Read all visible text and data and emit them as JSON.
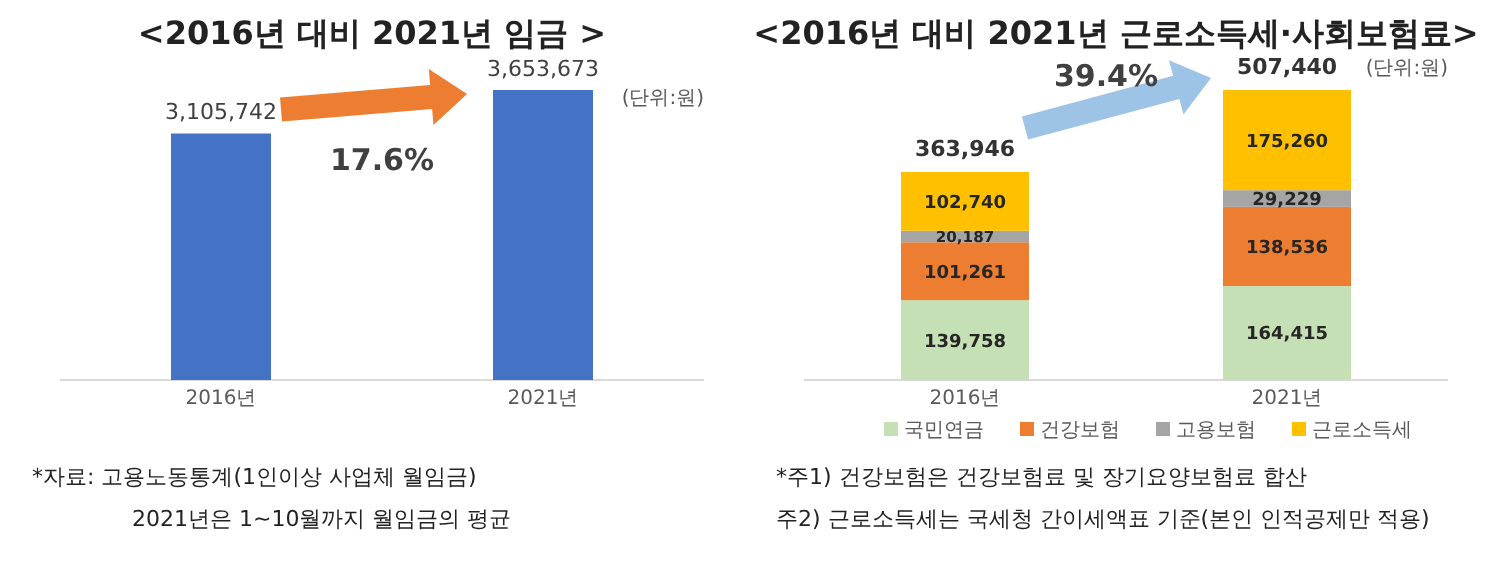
{
  "chart_data": [
    {
      "type": "bar",
      "title": "<2016년 대비 2021년 임금 >",
      "categories": [
        "2016년",
        "2021년"
      ],
      "values": [
        3105742,
        3653673
      ],
      "color": "#4472c4",
      "value_labels": [
        "3,105,742",
        "3,653,673"
      ],
      "annotations": [
        "(단위:원)",
        "17.6%",
        "*자료: 고용노동통계(1인이상 사업체 월임금)",
        "2021년은 1~10월까지 월임금의 평균"
      ]
    },
    {
      "type": "bar",
      "title": "<2016년 대비 2021년 근로소득세·사회보험료>",
      "categories": [
        "2016년",
        "2021년"
      ],
      "stacked": true,
      "legend": "bottom",
      "series": [
        {
          "name": "국민연금",
          "color": "#c5e0b4",
          "values": [
            139758,
            164415
          ],
          "value_labels": [
            "139,758",
            "164,415"
          ]
        },
        {
          "name": "건강보험",
          "color": "#ed7d31",
          "values": [
            101261,
            138536
          ],
          "value_labels": [
            "101,261",
            "138,536"
          ]
        },
        {
          "name": "고용보험",
          "color": "#a5a5a5",
          "values": [
            20187,
            29229
          ],
          "value_labels": [
            "20,187",
            "29,229"
          ]
        },
        {
          "name": "근로소득세",
          "color": "#ffc000",
          "values": [
            102740,
            175260
          ],
          "value_labels": [
            "102,740",
            "175,260"
          ]
        }
      ],
      "totals": [
        "363,946",
        "507,440"
      ],
      "annotations": [
        "(단위:원)",
        "39.4%",
        "*주1) 건강보험은 건강보험료 및 장기요양보험료 합산",
        "주2) 근로소득세는 국세청 간이세액표 기준(본인 인적공제만 적용)"
      ]
    }
  ]
}
